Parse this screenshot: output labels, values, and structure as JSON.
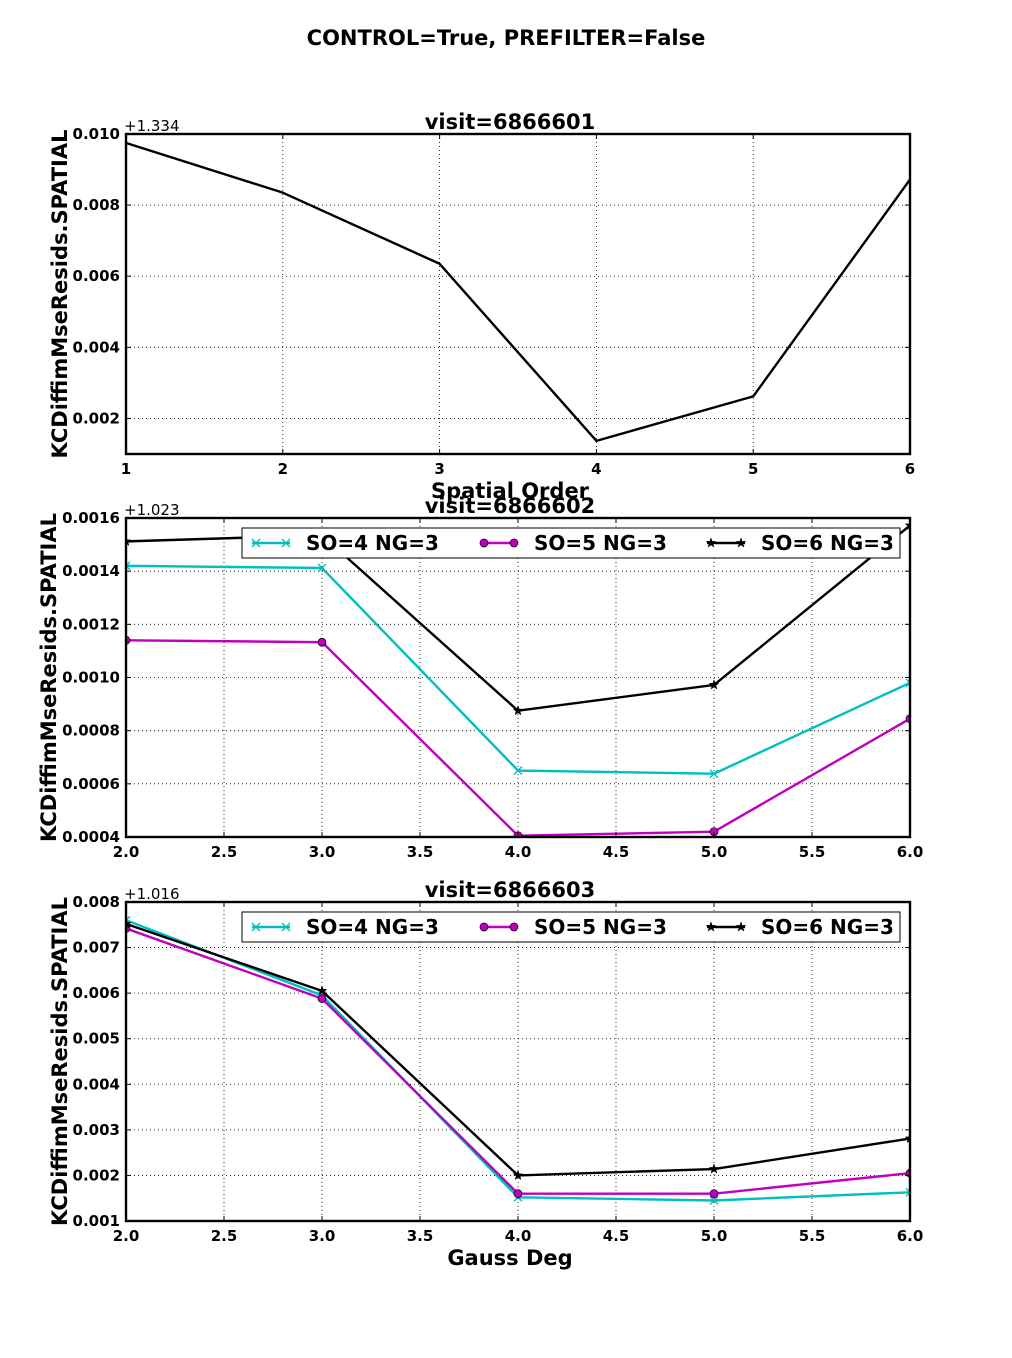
{
  "figure": {
    "suptitle": "CONTROL=True, PREFILTER=False"
  },
  "colors": {
    "so4": "#00bfbf",
    "so5": "#bf00bf",
    "so6": "#000000"
  },
  "chart_data": [
    {
      "type": "line",
      "title": "visit=6866601",
      "xlabel": "Spatial Order",
      "ylabel": "KCDiffimMseResids.SPATIAL",
      "offset_text": "+1.334",
      "xlim": [
        1,
        6
      ],
      "ylim": [
        0.001,
        0.01
      ],
      "xticks": [
        "1",
        "2",
        "3",
        "4",
        "5",
        "6"
      ],
      "xtick_values": [
        1,
        2,
        3,
        4,
        5,
        6
      ],
      "yticks": [
        "0.002",
        "0.004",
        "0.006",
        "0.008",
        "0.010"
      ],
      "ytick_values": [
        0.002,
        0.004,
        0.006,
        0.008,
        0.01
      ],
      "grid": true,
      "legend": null,
      "series": [
        {
          "color": "#000000",
          "marker": "none",
          "x": [
            1,
            2,
            3,
            4,
            5,
            6
          ],
          "y": [
            0.00975,
            0.00835,
            0.00635,
            0.00137,
            0.00262,
            0.00872
          ]
        }
      ]
    },
    {
      "type": "line",
      "title": "visit=6866602",
      "xlabel": "",
      "ylabel": "KCDiffimMseResids.SPATIAL",
      "offset_text": "+1.023",
      "xlim": [
        2.0,
        6.0
      ],
      "ylim": [
        0.0004,
        0.0016
      ],
      "xticks": [
        "2.0",
        "2.5",
        "3.0",
        "3.5",
        "4.0",
        "4.5",
        "5.0",
        "5.5",
        "6.0"
      ],
      "xtick_values": [
        2.0,
        2.5,
        3.0,
        3.5,
        4.0,
        4.5,
        5.0,
        5.5,
        6.0
      ],
      "yticks": [
        "0.0004",
        "0.0006",
        "0.0008",
        "0.0010",
        "0.0012",
        "0.0014",
        "0.0016"
      ],
      "ytick_values": [
        0.0004,
        0.0006,
        0.0008,
        0.001,
        0.0012,
        0.0014,
        0.0016
      ],
      "grid": true,
      "legend": "top",
      "series": [
        {
          "name": "SO=4 NG=3",
          "color": "#00bfbf",
          "marker": "x",
          "x": [
            2,
            3,
            4,
            5,
            6
          ],
          "y": [
            0.00142,
            0.001412,
            0.00065,
            0.000638,
            0.00098
          ]
        },
        {
          "name": "SO=5 NG=3",
          "color": "#bf00bf",
          "marker": "o",
          "x": [
            2,
            3,
            4,
            5,
            6
          ],
          "y": [
            0.00114,
            0.001133,
            0.000405,
            0.00042,
            0.000845
          ]
        },
        {
          "name": "SO=6 NG=3",
          "color": "#000000",
          "marker": "*",
          "x": [
            2,
            3,
            4,
            5,
            6
          ],
          "y": [
            0.001512,
            0.001535,
            0.000875,
            0.000972,
            0.001572
          ]
        }
      ]
    },
    {
      "type": "line",
      "title": "visit=6866603",
      "xlabel": "Gauss Deg",
      "ylabel": "KCDiffimMseResids.SPATIAL",
      "offset_text": "+1.016",
      "xlim": [
        2.0,
        6.0
      ],
      "ylim": [
        0.001,
        0.008
      ],
      "xticks": [
        "2.0",
        "2.5",
        "3.0",
        "3.5",
        "4.0",
        "4.5",
        "5.0",
        "5.5",
        "6.0"
      ],
      "xtick_values": [
        2.0,
        2.5,
        3.0,
        3.5,
        4.0,
        4.5,
        5.0,
        5.5,
        6.0
      ],
      "yticks": [
        "0.001",
        "0.002",
        "0.003",
        "0.004",
        "0.005",
        "0.006",
        "0.007",
        "0.008"
      ],
      "ytick_values": [
        0.001,
        0.002,
        0.003,
        0.004,
        0.005,
        0.006,
        0.007,
        0.008
      ],
      "grid": true,
      "legend": "top",
      "series": [
        {
          "name": "SO=4 NG=3",
          "color": "#00bfbf",
          "marker": "x",
          "x": [
            2,
            3,
            4,
            5,
            6
          ],
          "y": [
            0.0076,
            0.00595,
            0.00152,
            0.00145,
            0.00163
          ]
        },
        {
          "name": "SO=5 NG=3",
          "color": "#bf00bf",
          "marker": "o",
          "x": [
            2,
            3,
            4,
            5,
            6
          ],
          "y": [
            0.00742,
            0.00588,
            0.0016,
            0.0016,
            0.00205
          ]
        },
        {
          "name": "SO=6 NG=3",
          "color": "#000000",
          "marker": "*",
          "x": [
            2,
            3,
            4,
            5,
            6
          ],
          "y": [
            0.00752,
            0.00605,
            0.002,
            0.00214,
            0.00281
          ]
        }
      ]
    }
  ]
}
